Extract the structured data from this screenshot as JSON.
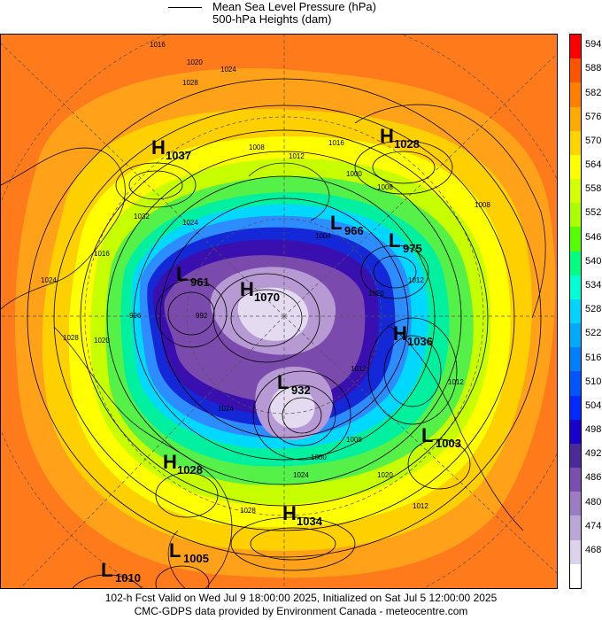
{
  "legend": {
    "mslp_label": "Mean Sea Level Pressure (hPa)",
    "heights_label": "500-hPa Heights (dam)"
  },
  "colorbar": {
    "levels": [
      "594",
      "588",
      "582",
      "576",
      "570",
      "564",
      "558",
      "552",
      "546",
      "540",
      "534",
      "528",
      "522",
      "516",
      "510",
      "504",
      "498",
      "492",
      "486",
      "480",
      "474",
      "468"
    ],
    "colors": [
      "#ff0000",
      "#ff5500",
      "#ff7f00",
      "#ffaa00",
      "#ffd400",
      "#ffff00",
      "#d4ff00",
      "#aaff00",
      "#55ff00",
      "#00ff80",
      "#00ffd4",
      "#00d4ff",
      "#00aaff",
      "#0080ff",
      "#0055ff",
      "#002aff",
      "#1a00cc",
      "#4b2a99",
      "#7a4fb0",
      "#9c7cc4",
      "#bba6d8",
      "#dcd2ec",
      "#ffffff"
    ]
  },
  "map_colors": {
    "ring_588": "#ff7a1a",
    "ring_582": "#ffa21a",
    "ring_576": "#ffd000",
    "ring_570": "#ffff00",
    "ring_564": "#c8ff00",
    "ring_558": "#55f048",
    "ring_546": "#00f0a0",
    "ring_534": "#00d8ff",
    "ring_522": "#2d8cff",
    "ring_510": "#1428d8",
    "ring_498": "#3a0fb0",
    "ring_486": "#7b4aad",
    "ring_474": "#b79ad4",
    "ring_468": "#e4dbf0"
  },
  "pressure_centers": [
    {
      "type": "H",
      "value": "1037"
    },
    {
      "type": "H",
      "value": "1028"
    },
    {
      "type": "L",
      "value": "966"
    },
    {
      "type": "L",
      "value": "975"
    },
    {
      "type": "L",
      "value": "961"
    },
    {
      "type": "H",
      "value": "1070"
    },
    {
      "type": "H",
      "value": "1036"
    },
    {
      "type": "L",
      "value": "932"
    },
    {
      "type": "L",
      "value": "1003"
    },
    {
      "type": "H",
      "value": "1028"
    },
    {
      "type": "H",
      "value": "1034"
    },
    {
      "type": "L",
      "value": "1005"
    },
    {
      "type": "L",
      "value": "1010"
    }
  ],
  "isobar_labels": [
    "1016",
    "1020",
    "1024",
    "1028",
    "1012",
    "1016",
    "1000",
    "1008",
    "1012",
    "1008",
    "1012",
    "1032",
    "1024",
    "1024",
    "1020",
    "1028",
    "1016",
    "1024",
    "1012",
    "1020",
    "1008",
    "1000",
    "1008",
    "1012",
    "1020",
    "1024",
    "1028",
    "996",
    "992",
    "1004"
  ],
  "footer": {
    "line1": "102-h Fcst Valid on Wed Jul  9 18:00:00 2025, Initialized on Sat Jul  5 12:00:00 2025",
    "line2": "CMC-GDPS data provided by Environment Canada - meteocentre.com"
  }
}
